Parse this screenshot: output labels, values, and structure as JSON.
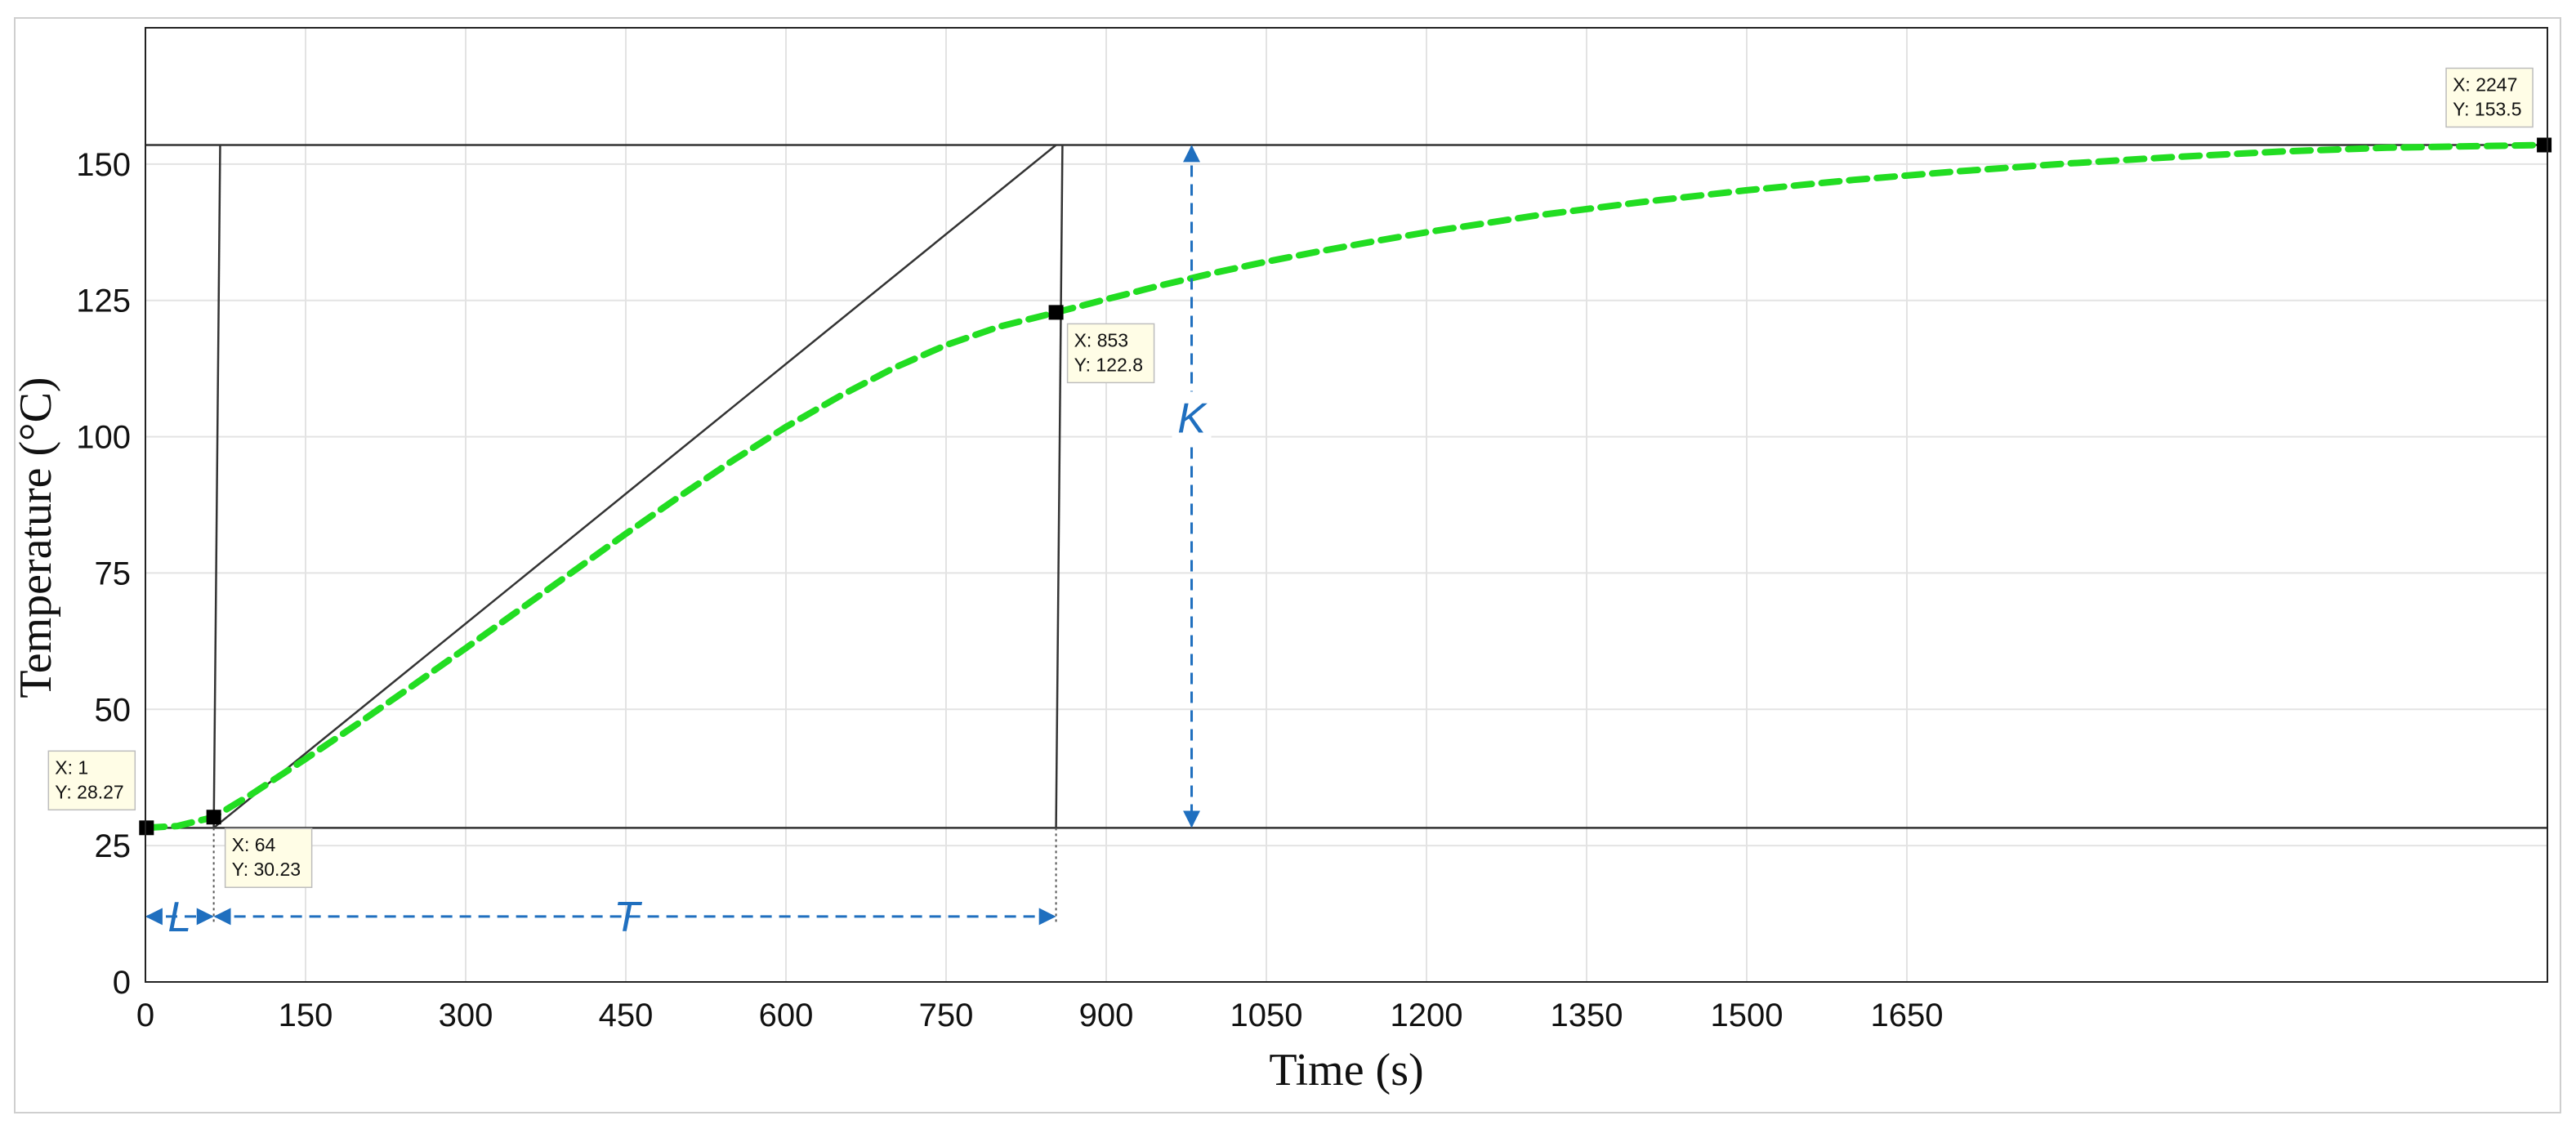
{
  "chart_data": {
    "type": "line",
    "xlabel": "Time (s)",
    "ylabel": "Temperature (°C)",
    "xlim": [
      0,
      2250
    ],
    "ylim": [
      0,
      175
    ],
    "x_ticks": [
      0,
      150,
      300,
      450,
      600,
      750,
      900,
      1050,
      1200,
      1350,
      1500,
      1650
    ],
    "x_tick_labels": [
      "0",
      "150",
      "300",
      "450",
      "600",
      "750",
      "900",
      "1050",
      "1200",
      "1350",
      "1500",
      "1650"
    ],
    "y_ticks": [
      0,
      25,
      50,
      75,
      100,
      125,
      150
    ],
    "y_tick_labels": [
      "0",
      "25",
      "50",
      "75",
      "100",
      "125",
      "150"
    ],
    "grid": true,
    "colors": {
      "measured": "#22dd22",
      "reference": "#333333",
      "annotation": "#1f6fbf",
      "datatip_bg": "#fffde6"
    },
    "series": [
      {
        "style": "dashed",
        "x": [
          1,
          30,
          64,
          100,
          150,
          200,
          250,
          300,
          350,
          400,
          450,
          500,
          550,
          600,
          650,
          700,
          750,
          800,
          853,
          900,
          950,
          1000,
          1050,
          1100,
          1150,
          1200,
          1300,
          1400,
          1500,
          1600,
          1700,
          1800,
          1900,
          2000,
          2100,
          2247
        ],
        "y": [
          28.27,
          28.6,
          30.23,
          34.5,
          40.9,
          47.5,
          54.3,
          61.2,
          68.2,
          75.2,
          82.2,
          89.0,
          95.6,
          101.8,
          107.4,
          112.5,
          116.8,
          120.2,
          122.8,
          125.2,
          127.7,
          130.0,
          132.1,
          134.0,
          135.8,
          137.5,
          140.5,
          143.0,
          145.2,
          147.1,
          148.7,
          150.1,
          151.3,
          152.3,
          153.0,
          153.5
        ]
      }
    ],
    "reference_lines": {
      "baseline_y": 28.27,
      "final_y": 153.5,
      "tangent": [
        [
          64,
          28.27
        ],
        [
          853,
          153.5
        ]
      ],
      "step_1": [
        [
          64,
          28.27
        ],
        [
          70,
          153.5
        ]
      ],
      "step_2": [
        [
          853,
          28.27
        ],
        [
          859,
          153.5
        ]
      ],
      "marker_L_x": 64,
      "marker_T_x": 853,
      "marker_K_x": 980,
      "dim_y": 12
    },
    "datatips": [
      {
        "x": 1,
        "y": 28.27,
        "x_label": "X: 1",
        "y_label": "Y: 28.27",
        "placement": "above-right"
      },
      {
        "x": 64,
        "y": 30.23,
        "x_label": "X: 64",
        "y_label": "Y: 30.23",
        "placement": "below-right"
      },
      {
        "x": 853,
        "y": 122.8,
        "x_label": "X: 853",
        "y_label": "Y: 122.8",
        "placement": "below-right"
      },
      {
        "x": 2247,
        "y": 153.5,
        "x_label": "X: 2247",
        "y_label": "Y: 153.5",
        "placement": "above-left"
      }
    ],
    "annotations": {
      "L": "L",
      "T": "T",
      "K": "K"
    }
  }
}
